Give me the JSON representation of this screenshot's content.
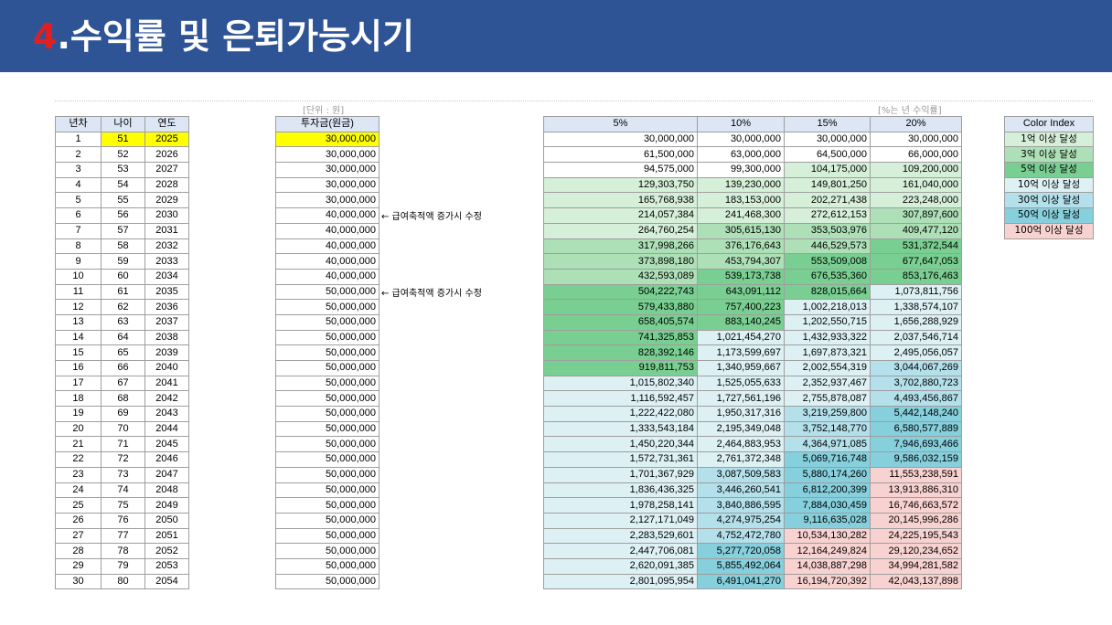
{
  "header": {
    "title_num": "4",
    "title_text": ".수익률  및 은퇴가능시기"
  },
  "notes": {
    "unit": "[단위 : 원]",
    "rate": "[%는 년 수익률]"
  },
  "left_table": {
    "headers": [
      "년차",
      "나이",
      "연도"
    ],
    "highlight_color": "#ffff00",
    "rows": [
      [
        "1",
        "51",
        "2025"
      ],
      [
        "2",
        "52",
        "2026"
      ],
      [
        "3",
        "53",
        "2027"
      ],
      [
        "4",
        "54",
        "2028"
      ],
      [
        "5",
        "55",
        "2029"
      ],
      [
        "6",
        "56",
        "2030"
      ],
      [
        "7",
        "57",
        "2031"
      ],
      [
        "8",
        "58",
        "2032"
      ],
      [
        "9",
        "59",
        "2033"
      ],
      [
        "10",
        "60",
        "2034"
      ],
      [
        "11",
        "61",
        "2035"
      ],
      [
        "12",
        "62",
        "2036"
      ],
      [
        "13",
        "63",
        "2037"
      ],
      [
        "14",
        "64",
        "2038"
      ],
      [
        "15",
        "65",
        "2039"
      ],
      [
        "16",
        "66",
        "2040"
      ],
      [
        "17",
        "67",
        "2041"
      ],
      [
        "18",
        "68",
        "2042"
      ],
      [
        "19",
        "69",
        "2043"
      ],
      [
        "20",
        "70",
        "2044"
      ],
      [
        "21",
        "71",
        "2045"
      ],
      [
        "22",
        "72",
        "2046"
      ],
      [
        "23",
        "73",
        "2047"
      ],
      [
        "24",
        "74",
        "2048"
      ],
      [
        "25",
        "75",
        "2049"
      ],
      [
        "26",
        "76",
        "2050"
      ],
      [
        "27",
        "77",
        "2051"
      ],
      [
        "28",
        "78",
        "2052"
      ],
      [
        "29",
        "79",
        "2053"
      ],
      [
        "30",
        "80",
        "2054"
      ]
    ]
  },
  "invest_table": {
    "header": "투자금(원금)",
    "values": [
      "30,000,000",
      "30,000,000",
      "30,000,000",
      "30,000,000",
      "30,000,000",
      "40,000,000",
      "40,000,000",
      "40,000,000",
      "40,000,000",
      "40,000,000",
      "50,000,000",
      "50,000,000",
      "50,000,000",
      "50,000,000",
      "50,000,000",
      "50,000,000",
      "50,000,000",
      "50,000,000",
      "50,000,000",
      "50,000,000",
      "50,000,000",
      "50,000,000",
      "50,000,000",
      "50,000,000",
      "50,000,000",
      "50,000,000",
      "50,000,000",
      "50,000,000",
      "50,000,000",
      "50,000,000"
    ],
    "annotations": [
      {
        "row": 5,
        "text": "← 급여축적액 증가시 수정"
      },
      {
        "row": 10,
        "text": "← 급여축적액 증가시 수정"
      }
    ]
  },
  "returns_table": {
    "headers": [
      "5%",
      "10%",
      "15%",
      "20%"
    ],
    "rows": [
      [
        "30,000,000",
        "30,000,000",
        "30,000,000",
        "30,000,000"
      ],
      [
        "61,500,000",
        "63,000,000",
        "64,500,000",
        "66,000,000"
      ],
      [
        "94,575,000",
        "99,300,000",
        "104,175,000",
        "109,200,000"
      ],
      [
        "129,303,750",
        "139,230,000",
        "149,801,250",
        "161,040,000"
      ],
      [
        "165,768,938",
        "183,153,000",
        "202,271,438",
        "223,248,000"
      ],
      [
        "214,057,384",
        "241,468,300",
        "272,612,153",
        "307,897,600"
      ],
      [
        "264,760,254",
        "305,615,130",
        "353,503,976",
        "409,477,120"
      ],
      [
        "317,998,266",
        "376,176,643",
        "446,529,573",
        "531,372,544"
      ],
      [
        "373,898,180",
        "453,794,307",
        "553,509,008",
        "677,647,053"
      ],
      [
        "432,593,089",
        "539,173,738",
        "676,535,360",
        "853,176,463"
      ],
      [
        "504,222,743",
        "643,091,112",
        "828,015,664",
        "1,073,811,756"
      ],
      [
        "579,433,880",
        "757,400,223",
        "1,002,218,013",
        "1,338,574,107"
      ],
      [
        "658,405,574",
        "883,140,245",
        "1,202,550,715",
        "1,656,288,929"
      ],
      [
        "741,325,853",
        "1,021,454,270",
        "1,432,933,322",
        "2,037,546,714"
      ],
      [
        "828,392,146",
        "1,173,599,697",
        "1,697,873,321",
        "2,495,056,057"
      ],
      [
        "919,811,753",
        "1,340,959,667",
        "2,002,554,319",
        "3,044,067,269"
      ],
      [
        "1,015,802,340",
        "1,525,055,633",
        "2,352,937,467",
        "3,702,880,723"
      ],
      [
        "1,116,592,457",
        "1,727,561,196",
        "2,755,878,087",
        "4,493,456,867"
      ],
      [
        "1,222,422,080",
        "1,950,317,316",
        "3,219,259,800",
        "5,442,148,240"
      ],
      [
        "1,333,543,184",
        "2,195,349,048",
        "3,752,148,770",
        "6,580,577,889"
      ],
      [
        "1,450,220,344",
        "2,464,883,953",
        "4,364,971,085",
        "7,946,693,466"
      ],
      [
        "1,572,731,361",
        "2,761,372,348",
        "5,069,716,748",
        "9,586,032,159"
      ],
      [
        "1,701,367,929",
        "3,087,509,583",
        "5,880,174,260",
        "11,553,238,591"
      ],
      [
        "1,836,436,325",
        "3,446,260,541",
        "6,812,200,399",
        "13,913,886,310"
      ],
      [
        "1,978,258,141",
        "3,840,886,595",
        "7,884,030,459",
        "16,746,663,572"
      ],
      [
        "2,127,171,049",
        "4,274,975,254",
        "9,116,635,028",
        "20,145,996,286"
      ],
      [
        "2,283,529,601",
        "4,752,472,780",
        "10,534,130,282",
        "24,225,195,543"
      ],
      [
        "2,447,706,081",
        "5,277,720,058",
        "12,164,249,824",
        "29,120,234,652"
      ],
      [
        "2,620,091,385",
        "5,855,492,064",
        "14,038,887,298",
        "34,994,281,582"
      ],
      [
        "2,801,095,954",
        "6,491,041,270",
        "16,194,720,392",
        "42,043,137,898"
      ]
    ]
  },
  "color_index": {
    "header": "Color Index",
    "items": [
      {
        "label": "1억 이상 달성",
        "color": "#d6efd8"
      },
      {
        "label": "3억 이상 달성",
        "color": "#aee0b8"
      },
      {
        "label": "5억 이상 달성",
        "color": "#79cf91"
      },
      {
        "label": "10억 이상 달성",
        "color": "#ddf1f5"
      },
      {
        "label": "30억 이상 달성",
        "color": "#b3e0ea"
      },
      {
        "label": "50억 이상 달성",
        "color": "#86cfdc"
      },
      {
        "label": "100억 이상 달성",
        "color": "#f8d2d0"
      }
    ]
  }
}
